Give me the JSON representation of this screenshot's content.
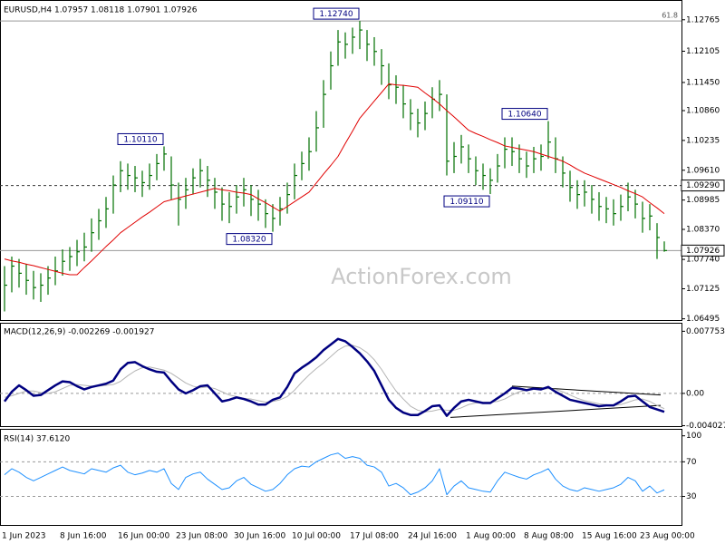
{
  "chart_data": [
    {
      "type": "ohlc",
      "title": "EURUSD,H4 1.07957 1.08118 1.07901 1.07926",
      "watermark": "ActionForex.com",
      "color": "#007000",
      "categories": [
        "1 Jun 2023",
        null,
        null,
        null,
        null,
        null,
        null,
        null,
        "8 Jun 16:00",
        null,
        null,
        null,
        null,
        null,
        null,
        null,
        "16 Jun 00:00",
        null,
        null,
        null,
        null,
        null,
        null,
        null,
        "23 Jun 08:00",
        null,
        null,
        null,
        null,
        null,
        null,
        null,
        "30 Jun 16:00",
        null,
        null,
        null,
        null,
        null,
        null,
        null,
        "10 Jul 00:00",
        null,
        null,
        null,
        null,
        null,
        null,
        null,
        "17 Jul 08:00",
        null,
        null,
        null,
        null,
        null,
        null,
        null,
        "24 Jul 16:00",
        null,
        null,
        null,
        null,
        null,
        null,
        null,
        "1 Aug 00:00",
        null,
        null,
        null,
        null,
        null,
        null,
        null,
        "8 Aug 08:00",
        null,
        null,
        null,
        null,
        null,
        null,
        null,
        "15 Aug 16:00",
        null,
        null,
        null,
        null,
        null,
        null,
        null,
        "23 Aug 00:00",
        null,
        null,
        null
      ],
      "close": [
        1.072,
        1.076,
        1.0745,
        1.073,
        1.0715,
        1.072,
        1.0735,
        1.075,
        1.077,
        1.078,
        1.079,
        1.08,
        1.083,
        1.0855,
        1.088,
        1.093,
        1.096,
        1.095,
        1.0945,
        1.0935,
        1.095,
        1.0975,
        1.0995,
        1.093,
        1.09,
        1.092,
        1.0945,
        1.096,
        1.094,
        1.0915,
        1.089,
        1.0885,
        1.0905,
        1.092,
        1.09,
        1.089,
        1.087,
        1.086,
        1.088,
        1.091,
        1.095,
        1.0975,
        1.1,
        1.105,
        1.112,
        1.118,
        1.123,
        1.1225,
        1.124,
        1.1255,
        1.1225,
        1.121,
        1.118,
        1.114,
        1.1135,
        1.11,
        1.108,
        1.106,
        1.108,
        1.111,
        1.112,
        1.098,
        1.099,
        1.101,
        1.0985,
        1.096,
        1.095,
        1.094,
        1.097,
        1.1005,
        1.1,
        1.0985,
        1.097,
        1.0985,
        1.099,
        1.102,
        1.0985,
        1.0955,
        1.0925,
        1.091,
        1.0915,
        1.09,
        1.0885,
        1.088,
        1.087,
        1.0885,
        1.0905,
        1.089,
        1.086,
        1.0865,
        1.082,
        1.07926
      ],
      "high": [
        1.076,
        1.078,
        1.0775,
        1.0765,
        1.075,
        1.0745,
        1.076,
        1.078,
        1.0795,
        1.08,
        1.0815,
        1.083,
        1.086,
        1.088,
        1.0905,
        1.095,
        1.098,
        1.0975,
        1.097,
        1.096,
        1.0975,
        1.0995,
        1.1011,
        1.099,
        1.0935,
        1.0945,
        1.0965,
        1.0985,
        1.097,
        1.0945,
        1.0925,
        1.0915,
        1.093,
        1.0945,
        1.093,
        1.092,
        1.09,
        1.089,
        1.0905,
        1.0935,
        1.0975,
        1.1,
        1.103,
        1.1085,
        1.115,
        1.121,
        1.1255,
        1.125,
        1.126,
        1.1274,
        1.1255,
        1.124,
        1.1215,
        1.1185,
        1.116,
        1.114,
        1.111,
        1.109,
        1.1105,
        1.1135,
        1.115,
        1.112,
        1.102,
        1.1035,
        1.1015,
        1.099,
        1.0975,
        1.0965,
        1.0995,
        1.103,
        1.103,
        1.1015,
        1.1,
        1.101,
        1.1015,
        1.1064,
        1.103,
        1.099,
        1.096,
        1.094,
        1.094,
        1.093,
        1.0915,
        1.0905,
        1.09,
        1.091,
        1.0935,
        1.092,
        1.0895,
        1.089,
        1.085,
        1.08118
      ],
      "low": [
        1.0665,
        1.0705,
        1.0715,
        1.07,
        1.069,
        1.0685,
        1.07,
        1.072,
        1.074,
        1.075,
        1.076,
        1.077,
        1.079,
        1.0815,
        1.084,
        1.087,
        1.0915,
        1.092,
        1.0915,
        1.0905,
        1.092,
        1.094,
        1.096,
        1.09,
        1.0845,
        1.088,
        1.091,
        1.0925,
        1.0905,
        1.088,
        1.0855,
        1.085,
        1.087,
        1.0885,
        1.0865,
        1.0855,
        1.084,
        1.0832,
        1.0845,
        1.087,
        1.09,
        1.094,
        1.096,
        1.1,
        1.105,
        1.113,
        1.118,
        1.1195,
        1.1205,
        1.1215,
        1.119,
        1.118,
        1.114,
        1.111,
        1.11,
        1.107,
        1.1045,
        1.103,
        1.1045,
        1.107,
        1.1085,
        1.095,
        1.0955,
        1.0975,
        1.0955,
        1.093,
        1.092,
        1.0911,
        1.0935,
        1.0965,
        1.097,
        1.0955,
        1.0945,
        1.0955,
        1.096,
        1.0985,
        1.0955,
        1.0925,
        1.0895,
        1.088,
        1.0885,
        1.087,
        1.0855,
        1.085,
        1.0845,
        1.0855,
        1.0875,
        1.086,
        1.083,
        1.0835,
        1.0775,
        1.07901
      ],
      "ma": {
        "color": "#e00000",
        "values": [
          1.0775,
          1.0771,
          1.0768,
          1.0764,
          1.0761,
          1.0757,
          1.0753,
          1.0749,
          1.0745,
          1.0742,
          1.0742,
          1.0757,
          1.0771,
          1.0786,
          1.0801,
          1.0815,
          1.083,
          1.0841,
          1.0852,
          1.0863,
          1.0873,
          1.0884,
          1.0895,
          1.0899,
          1.0903,
          1.0907,
          1.0911,
          1.0915,
          1.0919,
          1.0923,
          1.092,
          1.0918,
          1.0915,
          1.0913,
          1.091,
          1.0901,
          1.0893,
          1.0884,
          1.0875,
          1.0885,
          1.0895,
          1.0905,
          1.0915,
          1.0934,
          1.0953,
          1.0971,
          1.099,
          1.1017,
          1.1043,
          1.107,
          1.1088,
          1.1106,
          1.1124,
          1.1142,
          1.114,
          1.1139,
          1.1137,
          1.1135,
          1.1123,
          1.1112,
          1.11,
          1.1086,
          1.1073,
          1.1059,
          1.1045,
          1.1038,
          1.1032,
          1.1025,
          1.1019,
          1.1012,
          1.1009,
          1.1006,
          1.1003,
          1.1,
          1.0995,
          1.099,
          1.0985,
          1.098,
          1.0972,
          1.0963,
          1.0955,
          1.0949,
          1.0943,
          1.0937,
          1.0931,
          1.0925,
          1.0918,
          1.0912,
          1.0905,
          1.0893,
          1.0882,
          1.087
        ]
      },
      "ylim": [
        1.0645,
        1.1316
      ],
      "yticks": [
        1.12765,
        1.12105,
        {
          "value": 1.1145,
          "label": "1.11450"
        },
        {
          "value": 1.1086,
          "label": "1.10860"
        },
        1.10235,
        {
          "value": 1.0961,
          "label": "1.09610"
        },
        1.08985,
        {
          "value": 1.0837,
          "label": "1.08370"
        },
        {
          "value": 1.0774,
          "label": "1.07740"
        },
        1.07125,
        1.06495
      ],
      "levels": [
        {
          "value": 1.1274,
          "label": "61.8",
          "style": "solid",
          "boxed": false
        },
        {
          "value": 1.0929,
          "label": "1.09290",
          "style": "dashed",
          "boxed": true
        },
        {
          "value": 1.07926,
          "label": "1.07926",
          "style": "solid",
          "boxed": true
        }
      ],
      "annotations": [
        {
          "text": "1.12740",
          "value": 1.1274,
          "index": 49
        },
        {
          "text": "1.10110",
          "value": 1.1011,
          "index": 22
        },
        {
          "text": "1.08320",
          "value": 1.0832,
          "index": 37
        },
        {
          "text": "1.09110",
          "value": 1.0911,
          "index": 67
        },
        {
          "text": "1.10640",
          "value": 1.1064,
          "index": 75
        }
      ]
    },
    {
      "type": "line",
      "title": "MACD(12,26,9) -0.002269 -0.001927",
      "ylim": [
        -0.0042,
        0.0087
      ],
      "yticks": [
        0.007753,
        {
          "value": 0,
          "label": "0.00"
        },
        -0.004027
      ],
      "levels": [
        0
      ],
      "series": [
        {
          "color": "#000080",
          "width": 2.5,
          "values": [
            -0.001,
            0.0002,
            0.001,
            0.0004,
            -0.0003,
            -0.0002,
            0.0004,
            0.001,
            0.0015,
            0.0014,
            0.0009,
            0.0005,
            0.0008,
            0.001,
            0.0012,
            0.0016,
            0.003,
            0.0038,
            0.0039,
            0.0034,
            0.003,
            0.0027,
            0.0026,
            0.0015,
            0.0005,
            0.0,
            0.0004,
            0.0009,
            0.001,
            0.0,
            -0.001,
            -0.0008,
            -0.0005,
            -0.0007,
            -0.001,
            -0.0014,
            -0.0014,
            -0.0008,
            -0.0005,
            0.0008,
            0.0025,
            0.0032,
            0.0038,
            0.0045,
            0.0054,
            0.0061,
            0.0068,
            0.0065,
            0.0058,
            0.005,
            0.004,
            0.0028,
            0.001,
            -0.0008,
            -0.0018,
            -0.0024,
            -0.0027,
            -0.0027,
            -0.0022,
            -0.0016,
            -0.0015,
            -0.0028,
            -0.0018,
            -0.001,
            -0.0008,
            -0.001,
            -0.0012,
            -0.0012,
            -0.0006,
            0.0,
            0.0007,
            0.0006,
            0.0004,
            0.0006,
            0.0005,
            0.0008,
            0.0002,
            -0.0003,
            -0.0008,
            -0.001,
            -0.0012,
            -0.0014,
            -0.0016,
            -0.0015,
            -0.0015,
            -0.001,
            -0.0004,
            -0.0003,
            -0.001,
            -0.0017,
            -0.002,
            -0.0023
          ]
        },
        {
          "color": "#b4b4b4",
          "width": 1,
          "values": [
            -0.0005,
            -0.0003,
            0.0,
            0.0003,
            0.0003,
            0.0001,
            0.0,
            0.0002,
            0.0006,
            0.001,
            0.0011,
            0.001,
            0.0009,
            0.0009,
            0.001,
            0.0011,
            0.0015,
            0.0022,
            0.0028,
            0.0032,
            0.0033,
            0.0031,
            0.0029,
            0.0025,
            0.0019,
            0.0013,
            0.0009,
            0.0007,
            0.0008,
            0.0006,
            0.0002,
            -0.0002,
            -0.0004,
            -0.0006,
            -0.0007,
            -0.0009,
            -0.0011,
            -0.001,
            -0.0008,
            -0.0004,
            0.0004,
            0.0014,
            0.0023,
            0.0031,
            0.0038,
            0.0046,
            0.0054,
            0.0059,
            0.006,
            0.0057,
            0.0051,
            0.0042,
            0.003,
            0.0016,
            0.0003,
            -0.0007,
            -0.0016,
            -0.0021,
            -0.0023,
            -0.0022,
            -0.002,
            -0.0021,
            -0.0021,
            -0.0018,
            -0.0014,
            -0.0012,
            -0.0011,
            -0.0011,
            -0.001,
            -0.0007,
            -0.0002,
            0.0002,
            0.0004,
            0.0005,
            0.0005,
            0.0006,
            0.0005,
            0.0002,
            -0.0002,
            -0.0006,
            -0.0009,
            -0.0011,
            -0.0013,
            -0.0014,
            -0.0015,
            -0.0014,
            -0.0011,
            -0.0008,
            -0.0007,
            -0.001,
            -0.0015,
            -0.0019
          ]
        }
      ],
      "trendlines": [
        {
          "from": [
            61.5,
            -0.003
          ],
          "to": [
            90.5,
            -0.0015
          ]
        },
        {
          "from": [
            70,
            0.0009
          ],
          "to": [
            90.5,
            -0.0002
          ]
        }
      ]
    },
    {
      "type": "line",
      "title": "RSI(14) 37.6120",
      "ylim": [
        -4,
        107
      ],
      "yticks": [
        100,
        70,
        30
      ],
      "levels": [
        70,
        30
      ],
      "series": [
        {
          "color": "#1e90ff",
          "width": 1,
          "values": [
            55,
            62,
            58,
            52,
            48,
            52,
            56,
            60,
            64,
            60,
            58,
            56,
            62,
            60,
            58,
            63,
            66,
            58,
            55,
            57,
            60,
            58,
            62,
            45,
            38,
            52,
            56,
            58,
            50,
            44,
            38,
            40,
            48,
            52,
            44,
            40,
            36,
            38,
            45,
            55,
            62,
            65,
            64,
            70,
            74,
            78,
            80,
            74,
            76,
            74,
            66,
            64,
            58,
            42,
            45,
            40,
            32,
            35,
            40,
            48,
            62,
            32,
            42,
            48,
            40,
            38,
            36,
            35,
            48,
            58,
            55,
            52,
            50,
            55,
            58,
            62,
            50,
            42,
            38,
            36,
            40,
            38,
            36,
            38,
            40,
            44,
            52,
            48,
            36,
            42,
            34,
            37.612
          ]
        }
      ]
    }
  ]
}
